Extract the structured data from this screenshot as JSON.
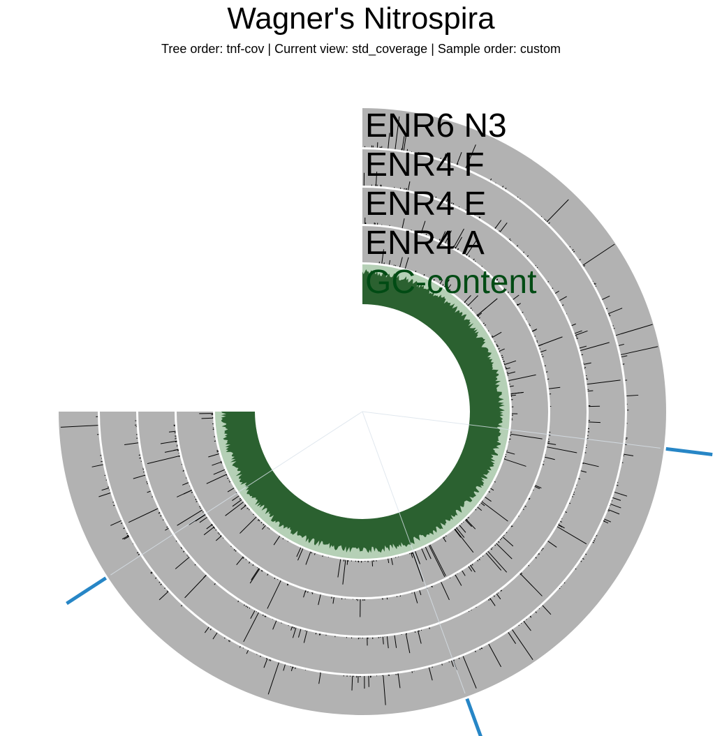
{
  "header": {
    "title": "Wagner's Nitrospira",
    "subtitle": "Tree order: tnf-cov | Current view: std_coverage | Sample order: custom"
  },
  "chart_data": {
    "type": "radial coverage plot",
    "title": "Wagner's Nitrospira",
    "subtitle": "Tree order: tnf-cov | Current view: std_coverage | Sample order: custom",
    "start_angle_deg": 0,
    "end_angle_deg": 270,
    "layers": [
      {
        "name": "ENR6 N3",
        "color": "#b2b2b2",
        "label_color": "#000000",
        "type": "bars"
      },
      {
        "name": "ENR4 F",
        "color": "#b2b2b2",
        "label_color": "#000000",
        "type": "bars"
      },
      {
        "name": "ENR4 E",
        "color": "#b2b2b2",
        "label_color": "#000000",
        "type": "bars"
      },
      {
        "name": "ENR4 A",
        "color": "#b2b2b2",
        "label_color": "#000000",
        "type": "bars"
      },
      {
        "name": "GC-content",
        "color": "#2b6130",
        "label_color": "#014b14",
        "type": "filled"
      }
    ],
    "gc_background_color": "#b5d0b6",
    "bar_color": "#000000",
    "branch_color": "#2786c6"
  }
}
